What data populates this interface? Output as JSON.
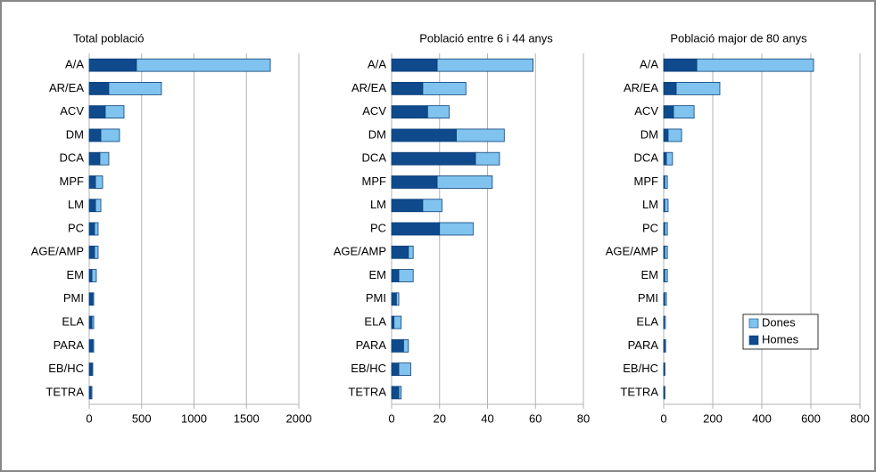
{
  "chart_data": [
    {
      "type": "bar",
      "title": "Total població",
      "categories": [
        "A/A",
        "AR/EA",
        "ACV",
        "DM",
        "DCA",
        "MPF",
        "LM",
        "PC",
        "AGE/AMP",
        "EM",
        "PMI",
        "ELA",
        "PARA",
        "EB/HC",
        "TETRA"
      ],
      "series": [
        {
          "color": "#0e4a8c",
          "values": [
            451,
            187,
            153,
            111,
            102,
            60,
            60,
            51,
            51,
            26,
            34,
            26,
            34,
            26,
            17
          ]
        },
        {
          "color": "#80c3ee",
          "values": [
            1277,
            502,
            179,
            178,
            85,
            68,
            51,
            34,
            34,
            42,
            9,
            17,
            9,
            8,
            9
          ]
        }
      ],
      "xlim": [
        0,
        2000
      ],
      "xticks": [
        0,
        500,
        1000,
        1500,
        2000
      ],
      "grid": true
    },
    {
      "type": "bar",
      "title": "Població entre 6 i 44 anys",
      "categories": [
        "A/A",
        "AR/EA",
        "ACV",
        "DM",
        "DCA",
        "MPF",
        "LM",
        "PC",
        "AGE/AMP",
        "EM",
        "PMI",
        "ELA",
        "PARA",
        "EB/HC",
        "TETRA"
      ],
      "series": [
        {
          "color": "#0e4a8c",
          "values": [
            19,
            13,
            15,
            27,
            35,
            19,
            13,
            20,
            7,
            3,
            2,
            1,
            5,
            3,
            3
          ]
        },
        {
          "color": "#80c3ee",
          "values": [
            40,
            18,
            9,
            20,
            10,
            23,
            8,
            14,
            2,
            6,
            1,
            3,
            2,
            5,
            1
          ]
        }
      ],
      "xlim": [
        0,
        80
      ],
      "xticks": [
        0,
        20,
        40,
        60,
        80
      ],
      "grid": true
    },
    {
      "type": "bar",
      "title": "Població major de 80 anys",
      "categories": [
        "A/A",
        "AR/EA",
        "ACV",
        "DM",
        "DCA",
        "MPF",
        "LM",
        "PC",
        "AGE/AMP",
        "EM",
        "PMI",
        "ELA",
        "PARA",
        "EB/HC",
        "TETRA"
      ],
      "series": [
        {
          "name": "Homes",
          "color": "#0e4a8c",
          "values": [
            135,
            51,
            40,
            18,
            11,
            4,
            4,
            4,
            4,
            4,
            4,
            2,
            4,
            2,
            2
          ]
        },
        {
          "name": "Dones",
          "color": "#80c3ee",
          "values": [
            476,
            178,
            84,
            55,
            25,
            11,
            14,
            11,
            11,
            11,
            7,
            5,
            4,
            3,
            3
          ]
        }
      ],
      "xlim": [
        0,
        800
      ],
      "xticks": [
        0,
        200,
        400,
        600,
        800
      ],
      "grid": true,
      "legend": "lower right"
    }
  ]
}
